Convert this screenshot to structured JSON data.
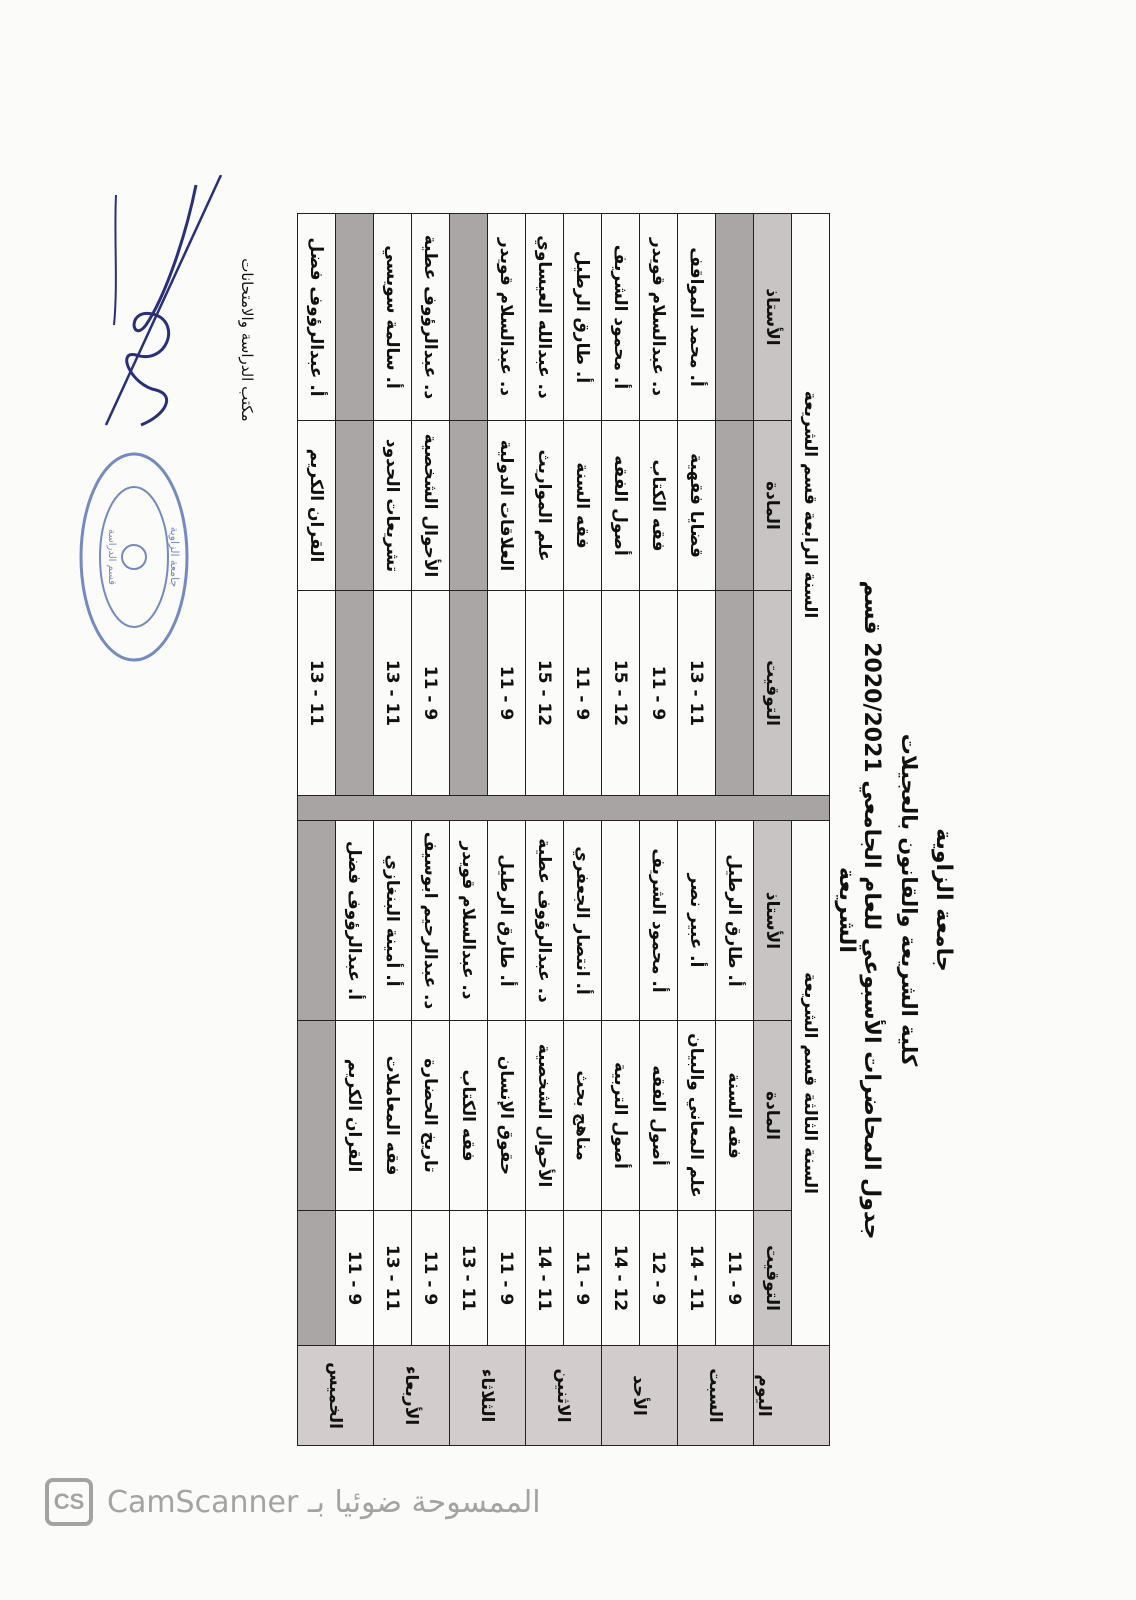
{
  "header": {
    "university": "جامعة الزاوية",
    "faculty": "كلية الشريعة والقانون بالعجيلات",
    "schedule_title": "جدول المحاضرات الأسبوعي للعام الجامعي 2020/2021 قسم الشريعة"
  },
  "table": {
    "day_header": "اليوم",
    "days": [
      "السبت",
      "الأحد",
      "الاثنين",
      "الثلاثاء",
      "الأربعاء",
      "الخميس"
    ],
    "columns": {
      "time": "التوقيت",
      "subject": "المادة",
      "instructor": "الأستاذ"
    },
    "year3": {
      "title": "السنة الثالثة قسم الشريعة",
      "rows": [
        {
          "time": "9 - 11",
          "subject": "فقه السنة",
          "instructor": "أ. طارق الرطيل"
        },
        {
          "time": "11 - 14",
          "subject": "علم المعاني والبيان",
          "instructor": "أ. عبير نصر"
        },
        {
          "time": "9 - 12",
          "subject": "أصول الفقه",
          "instructor": "أ. محمود الشريف"
        },
        {
          "time": "12 - 14",
          "subject": "أصول التربية",
          "instructor": ""
        },
        {
          "time": "9 - 11",
          "subject": "مناهج بحث",
          "instructor": "أ. انتصار الجعفري"
        },
        {
          "time": "11 - 14",
          "subject": "الأحوال الشخصية",
          "instructor": "د. عبدالرؤوف عطية"
        },
        {
          "time": "9 - 11",
          "subject": "حقوق الإنسان",
          "instructor": "أ. طارق الرطيل"
        },
        {
          "time": "11 - 13",
          "subject": "فقه الكتاب",
          "instructor": "د. عبدالسلام قويدر"
        },
        {
          "time": "9 - 11",
          "subject": "تاريخ الحضارة",
          "instructor": "د. عبدالرحيم ابوسيف"
        },
        {
          "time": "11 - 13",
          "subject": "فقه المعاملات",
          "instructor": "أ. أمينة البنغازي"
        },
        {
          "time": "9 - 11",
          "subject": "القران الكريم",
          "instructor": "أ. عبدالرؤوف فضل"
        },
        null
      ]
    },
    "year4": {
      "title": "السنة الرابعة قسم الشريعة",
      "rows": [
        null,
        {
          "time": "11 - 13",
          "subject": "قضايا فقهية",
          "instructor": "أ. محمد المواقف"
        },
        {
          "time": "9 - 11",
          "subject": "فقه الكتاب",
          "instructor": "د. عبدالسلام قويدر"
        },
        {
          "time": "12 - 15",
          "subject": "أصول الفقه",
          "instructor": "أ. محمود الشريف"
        },
        {
          "time": "9 - 11",
          "subject": "فقه السنة",
          "instructor": "أ. طارق الرطيل"
        },
        {
          "time": "12 - 15",
          "subject": "علم المواريث",
          "instructor": "د. عبدالله العيساوي"
        },
        {
          "time": "9 - 11",
          "subject": "العلاقات الدولية",
          "instructor": "د. عبدالسلام قويدر"
        },
        null,
        {
          "time": "9 - 11",
          "subject": "الأحوال الشخصية",
          "instructor": "د. عبدالرؤوف عطية"
        },
        {
          "time": "11 - 13",
          "subject": "تشريعات الحدود",
          "instructor": "أ. سالمة سويسي"
        },
        null,
        {
          "time": "11 - 13",
          "subject": "القران الكريم",
          "instructor": "أ. عبدالرؤوف فضل"
        }
      ]
    }
  },
  "footer": {
    "office": "مكتب الدراسة والامتحانات"
  },
  "stamp": {
    "text": "جامعة الزاوية - كلية الشريعة - قسم الدراسة والامتحانات"
  },
  "watermark": {
    "logo": "CS",
    "text": "الممسوحة ضوئيا بـ CamScanner"
  },
  "colors": {
    "gray_cell": "#aaa6a6",
    "header_cell": "#c9c4c4",
    "ink": "#111111",
    "stamp": "#3a5aa8",
    "signature": "#2a2f7a"
  }
}
